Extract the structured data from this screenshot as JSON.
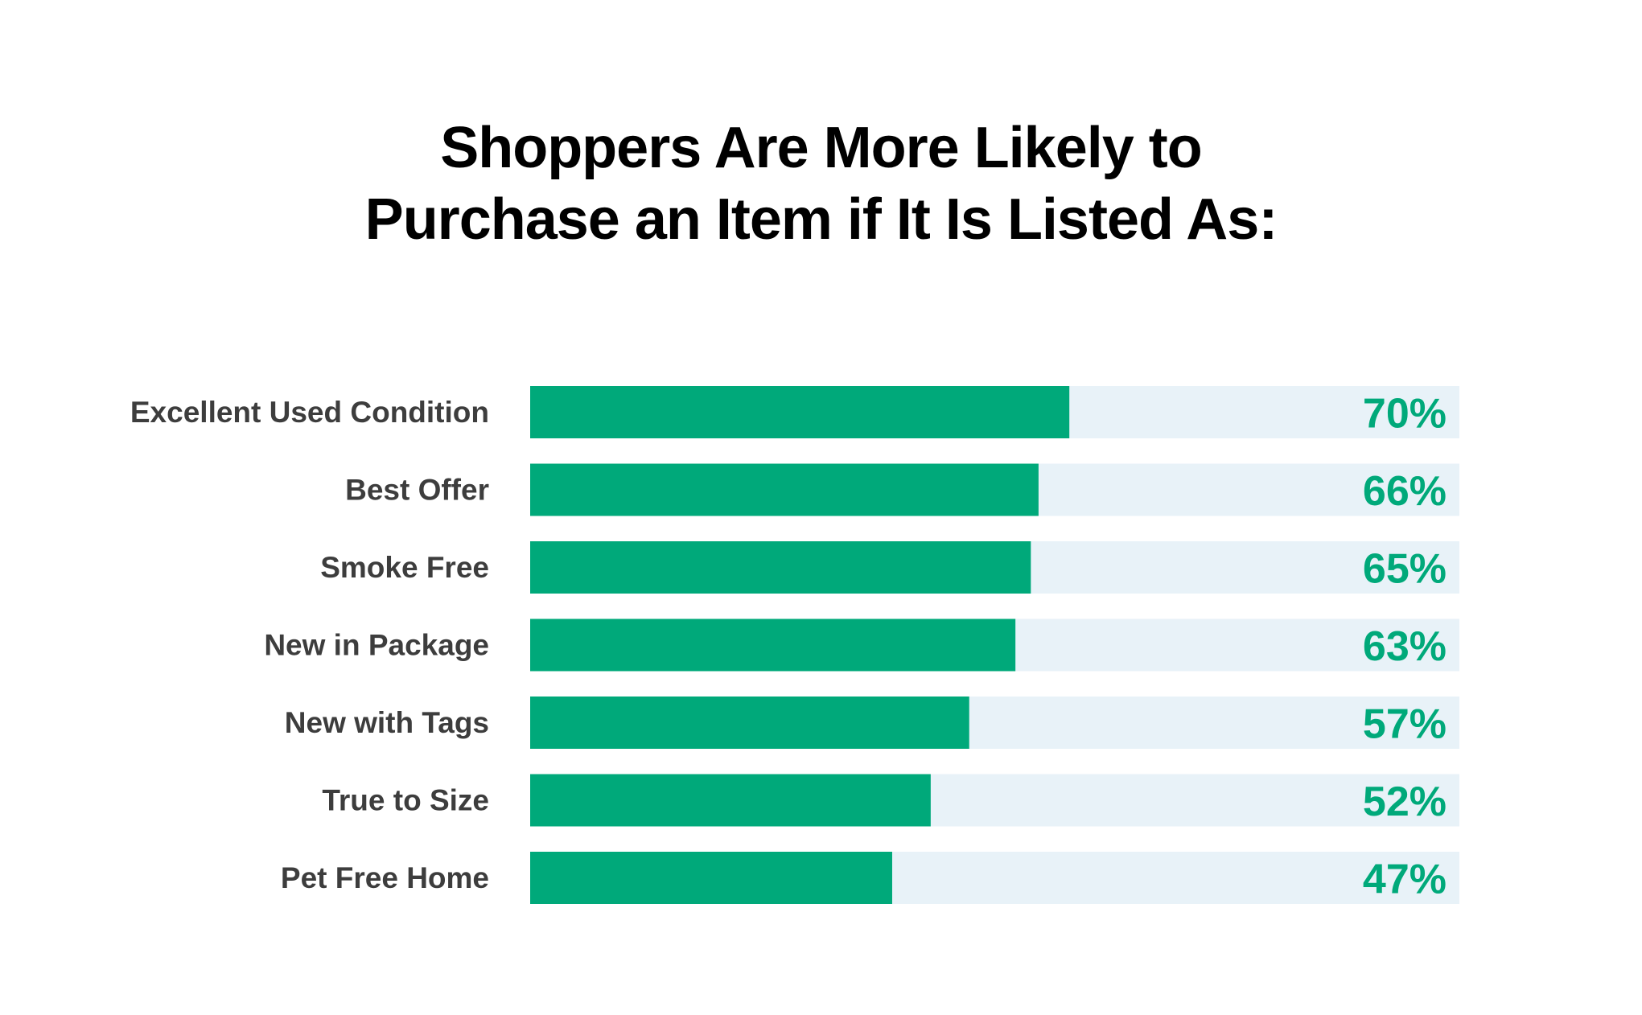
{
  "chart_data": {
    "type": "bar",
    "orientation": "horizontal",
    "title_lines": [
      "Shoppers Are More Likely to",
      "Purchase an Item if It Is Listed As:"
    ],
    "categories": [
      "Excellent Used Condition",
      "Best Offer",
      "Smoke Free",
      "New in Package",
      "New with Tags",
      "True to Size",
      "Pet Free Home"
    ],
    "values": [
      70,
      66,
      65,
      63,
      57,
      52,
      47
    ],
    "value_labels": [
      "70%",
      "66%",
      "65%",
      "63%",
      "57%",
      "52%",
      "47%"
    ],
    "xlim": [
      0,
      100
    ],
    "unit": "%",
    "grid": false,
    "legend": "none"
  },
  "colors": {
    "bar": "#00a97a",
    "track": "#e8f2f8",
    "value_text": "#00a97a",
    "label_text": "#3d3d3d",
    "title_text": "#000000",
    "background": "#ffffff"
  }
}
